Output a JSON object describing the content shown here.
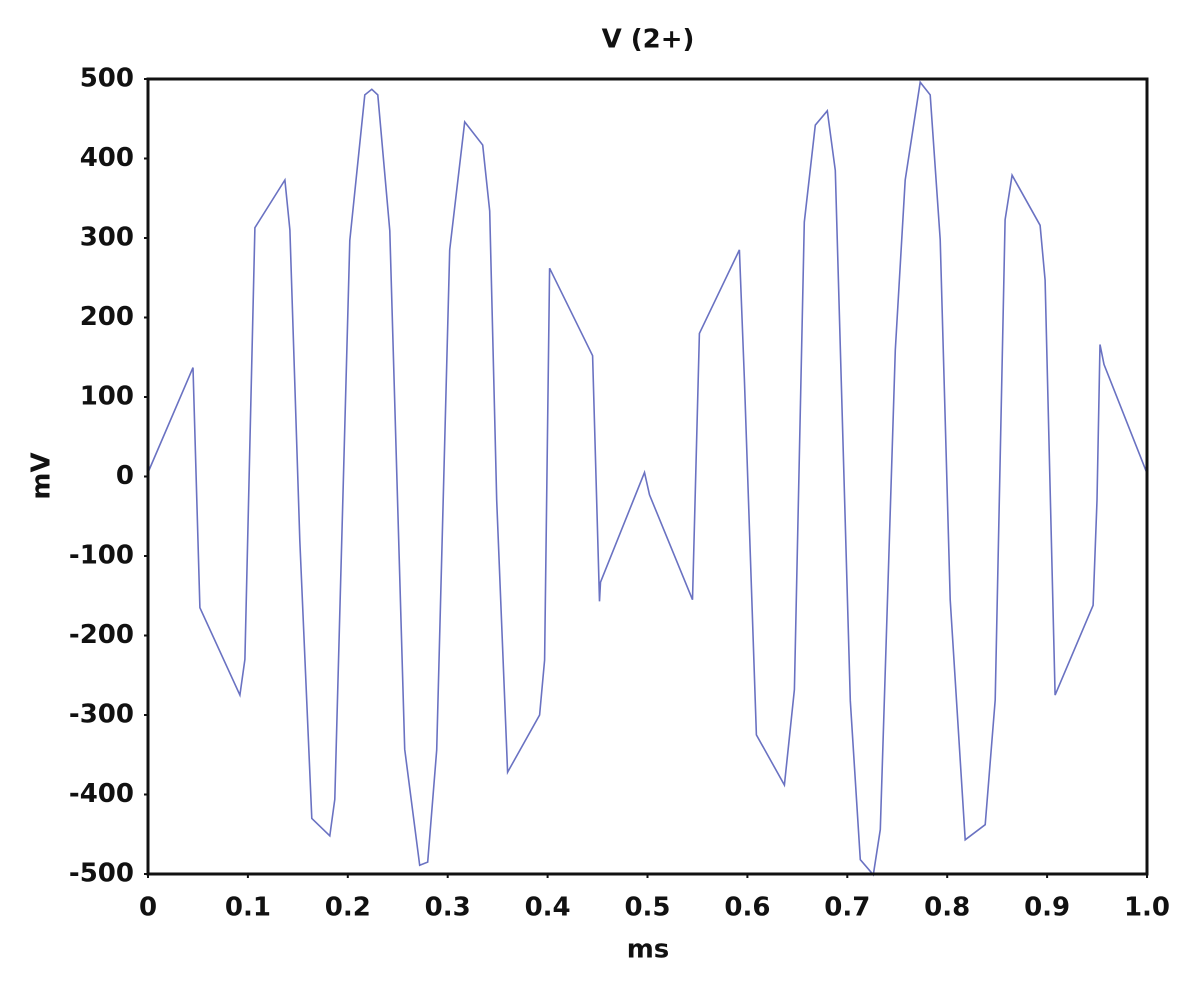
{
  "chart_data": {
    "type": "line",
    "title": "V (2+)",
    "x_label": "ms",
    "y_label": "mV",
    "x": [
      0,
      0.045,
      0.052,
      0.092,
      0.097,
      0.107,
      0.137,
      0.142,
      0.152,
      0.164,
      0.182,
      0.187,
      0.202,
      0.217,
      0.224,
      0.23,
      0.242,
      0.257,
      0.272,
      0.28,
      0.289,
      0.302,
      0.317,
      0.335,
      0.342,
      0.349,
      0.36,
      0.392,
      0.397,
      0.402,
      0.445,
      0.452,
      0.453,
      0.497,
      0.502,
      0.545,
      0.552,
      0.592,
      0.597,
      0.609,
      0.637,
      0.647,
      0.657,
      0.668,
      0.68,
      0.688,
      0.703,
      0.713,
      0.726,
      0.733,
      0.748,
      0.758,
      0.773,
      0.783,
      0.793,
      0.803,
      0.818,
      0.838,
      0.848,
      0.858,
      0.865,
      0.893,
      0.898,
      0.908,
      0.946,
      0.95,
      0.953,
      0.957,
      1.0
    ],
    "series": [
      {
        "name": "V (2+)",
        "color": "#6a72c2",
        "values": [
          5,
          137,
          -165,
          -275,
          -230,
          313,
          373,
          310,
          -80,
          -430,
          -452,
          -406,
          297,
          480,
          487,
          480,
          309,
          -343,
          -489,
          -485,
          -344,
          285,
          446,
          417,
          334,
          -30,
          -372,
          -300,
          -231,
          262,
          152,
          -157,
          -133,
          5,
          -23,
          -155,
          180,
          285,
          122,
          -325,
          -388,
          -268,
          320,
          442,
          460,
          385,
          -282,
          -482,
          -501,
          -444,
          159,
          373,
          496,
          480,
          298,
          -155,
          -457,
          -438,
          -281,
          323,
          379,
          316,
          247,
          -275,
          -162,
          -30,
          166,
          141,
          4
        ]
      }
    ],
    "xlim": [
      0,
      1
    ],
    "ylim": [
      -500,
      500
    ],
    "xticks": [
      0,
      0.1,
      0.2,
      0.3,
      0.4,
      0.5,
      0.6,
      0.7,
      0.8,
      0.9,
      {
        "value": 1,
        "label": "1.0"
      }
    ],
    "yticks": [
      -500,
      -400,
      -300,
      -200,
      -100,
      0,
      100,
      200,
      300,
      400,
      500
    ],
    "grid": false
  }
}
